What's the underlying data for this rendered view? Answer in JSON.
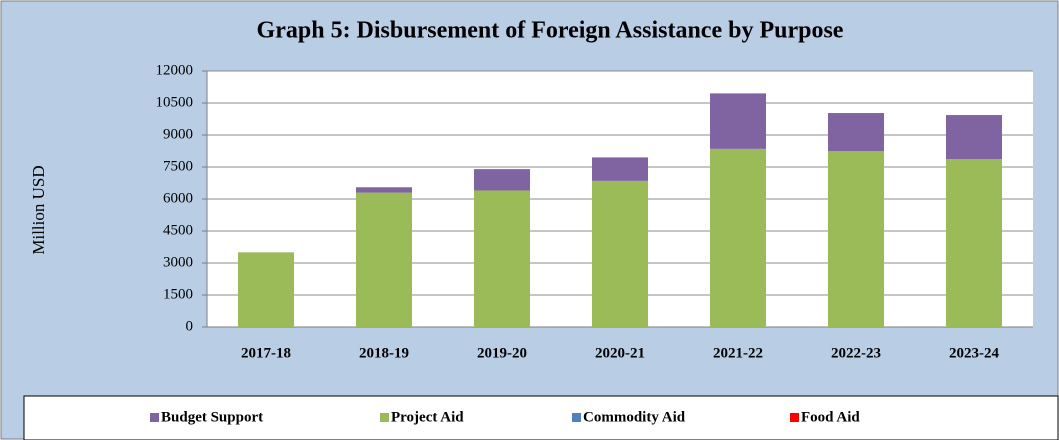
{
  "chart_data": {
    "type": "stacked-bar",
    "title": "Graph 5: Disbursement of Foreign Assistance by Purpose",
    "y_label": "Million USD",
    "categories": [
      "2017-18",
      "2018-19",
      "2019-20",
      "2020-21",
      "2021-22",
      "2022-23",
      "2023-24"
    ],
    "series": [
      {
        "name": "Budget Support",
        "color": "#8064a2",
        "values": [
          0,
          250,
          1000,
          1100,
          2600,
          1780,
          2060
        ]
      },
      {
        "name": "Project Aid",
        "color": "#9bbb59",
        "values": [
          3500,
          6300,
          6400,
          6850,
          8350,
          8250,
          7875
        ]
      },
      {
        "name": "Commodity Aid",
        "color": "#4f81bd",
        "values": [
          0,
          0,
          0,
          0,
          0,
          0,
          0
        ]
      },
      {
        "name": "Food Aid",
        "color": "#ff0000",
        "values": [
          0,
          0,
          0,
          0,
          0,
          0,
          0
        ]
      }
    ],
    "ylim": [
      0,
      12000
    ],
    "yticks": [
      0,
      1500,
      3000,
      4500,
      6000,
      7500,
      9000,
      10500,
      12000
    ],
    "grid": true,
    "legend": "bottom"
  }
}
